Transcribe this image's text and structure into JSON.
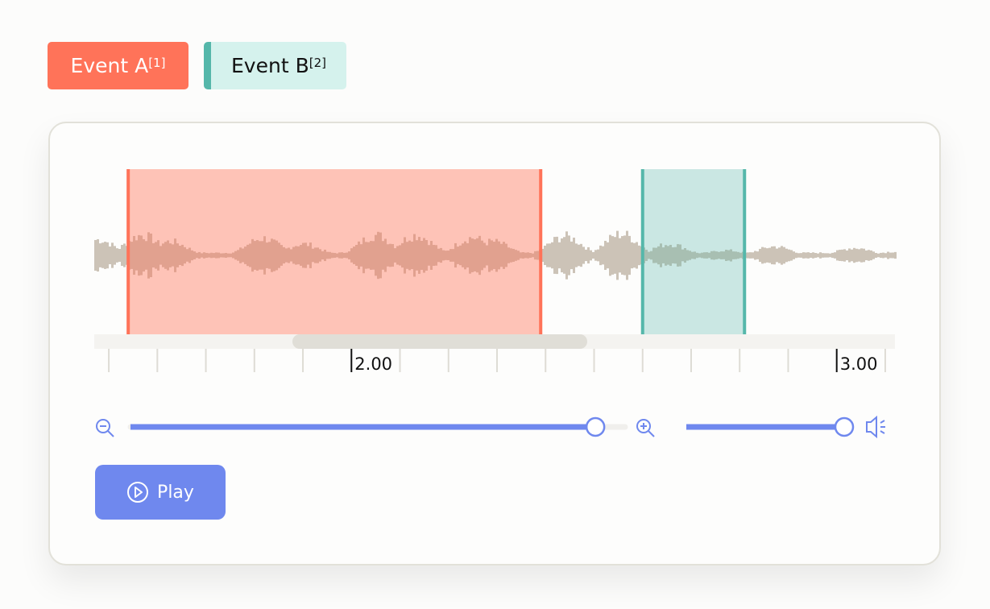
{
  "events": [
    {
      "label": "Event A",
      "ref": "[1]",
      "color": "#ff7359",
      "start": 1.54,
      "end": 2.39
    },
    {
      "label": "Event B",
      "ref": "[2]",
      "color": "#55b7aa",
      "start": 2.6,
      "end": 2.81
    }
  ],
  "timeline": {
    "visible_range": [
      1.47,
      3.12
    ],
    "major_ticks": [
      {
        "value": 2.0,
        "label": "2.00"
      },
      {
        "value": 3.0,
        "label": "3.00"
      }
    ],
    "minor_step": 0.1
  },
  "waveform_color": "#ccc3b7",
  "zoom": {
    "level": 0.94,
    "zoom_out_icon": "zoom-out-icon",
    "zoom_in_icon": "zoom-in-icon"
  },
  "volume": {
    "level": 1.0,
    "icon": "speaker-icon"
  },
  "play_button": {
    "label": "Play",
    "icon": "play-circle-icon"
  },
  "accent_color": "#6f88ee"
}
